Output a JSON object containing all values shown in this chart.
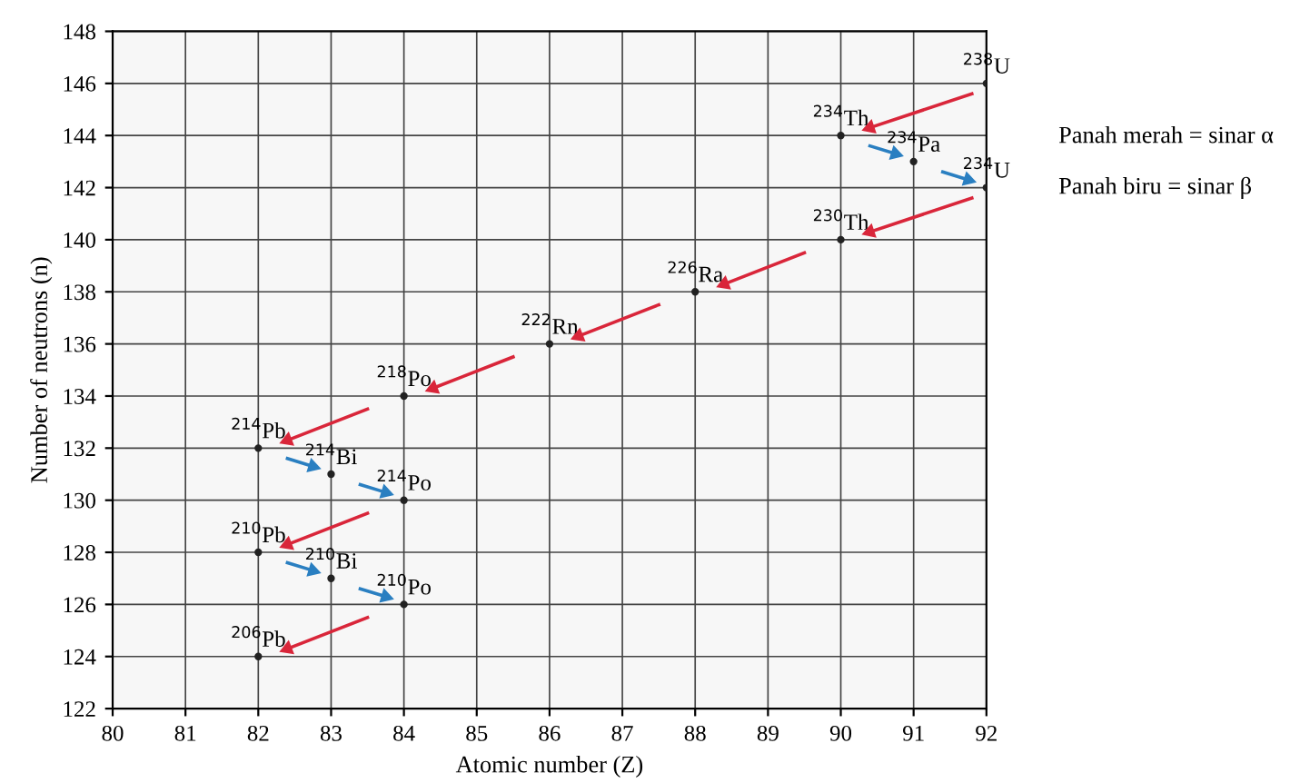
{
  "chart_data": {
    "type": "line",
    "xlabel": "Atomic number (Z)",
    "ylabel": "Number of neutrons (n)",
    "series": [
      {
        "color": "#d9263a",
        "x": [
          91.8,
          90.4
        ],
        "values": [
          145.6,
          144.3
        ]
      },
      {
        "color": "#2a7fc1",
        "x": [
          90.4,
          90.75
        ],
        "values": [
          143.6,
          143.3
        ]
      },
      {
        "color": "#2a7fc1",
        "x": [
          91.4,
          91.75
        ],
        "values": [
          142.6,
          142.3
        ]
      },
      {
        "color": "#d9263a",
        "x": [
          91.8,
          90.4
        ],
        "values": [
          141.6,
          140.3
        ]
      },
      {
        "color": "#d9263a",
        "x": [
          89.5,
          88.4
        ],
        "values": [
          139.5,
          138.3
        ]
      },
      {
        "color": "#d9263a",
        "x": [
          87.5,
          86.4
        ],
        "values": [
          137.5,
          136.3
        ]
      },
      {
        "color": "#d9263a",
        "x": [
          85.5,
          84.4
        ],
        "values": [
          135.5,
          134.3
        ]
      },
      {
        "color": "#d9263a",
        "x": [
          83.5,
          82.4
        ],
        "values": [
          133.5,
          132.3
        ]
      },
      {
        "color": "#2a7fc1",
        "x": [
          82.4,
          82.75
        ],
        "values": [
          131.6,
          131.3
        ]
      },
      {
        "color": "#2a7fc1",
        "x": [
          83.4,
          83.75
        ],
        "values": [
          130.6,
          130.3
        ]
      },
      {
        "color": "#d9263a",
        "x": [
          83.5,
          82.4
        ],
        "values": [
          129.5,
          128.3
        ]
      },
      {
        "color": "#2a7fc1",
        "x": [
          82.4,
          82.75
        ],
        "values": [
          127.6,
          127.3
        ]
      },
      {
        "color": "#2a7fc1",
        "x": [
          83.4,
          83.75
        ],
        "values": [
          126.6,
          126.3
        ]
      },
      {
        "color": "#d9263a",
        "x": [
          83.5,
          82.4
        ],
        "values": [
          125.5,
          124.3
        ]
      },
      {
        "type": "scatter",
        "color": "#222222",
        "marker": "circle",
        "x": [
          92,
          90,
          91,
          92,
          90,
          88,
          86,
          84,
          82,
          83,
          84,
          82,
          83,
          84,
          82
        ],
        "values": [
          146,
          144,
          143,
          142,
          140,
          138,
          136,
          134,
          132,
          131,
          130,
          128,
          127,
          126,
          124
        ]
      }
    ],
    "xlim": [
      80,
      92
    ],
    "xticks": [
      80,
      81,
      82,
      83,
      84,
      85,
      86,
      87,
      88,
      89,
      90,
      91,
      92
    ],
    "ylim": [
      122,
      148
    ],
    "yticks": [
      122,
      124,
      126,
      128,
      130,
      132,
      134,
      136,
      138,
      140,
      142,
      144,
      146,
      148
    ],
    "grid": true,
    "annotations": [
      {
        "text": "$^{238}$U",
        "x": 92,
        "y": 146
      },
      {
        "text": "$^{234}$Th",
        "x": 90,
        "y": 144
      },
      {
        "text": "$^{234}$Pa",
        "x": 91,
        "y": 143
      },
      {
        "text": "$^{234}$U",
        "x": 92,
        "y": 142
      },
      {
        "text": "$^{230}$Th",
        "x": 90,
        "y": 140
      },
      {
        "text": "$^{226}$Ra",
        "x": 88,
        "y": 138
      },
      {
        "text": "$^{222}$Rn",
        "x": 86,
        "y": 136
      },
      {
        "text": "$^{218}$Po",
        "x": 84,
        "y": 134
      },
      {
        "text": "$^{214}$Pb",
        "x": 82,
        "y": 132
      },
      {
        "text": "$^{214}$Bi",
        "x": 83,
        "y": 131
      },
      {
        "text": "$^{214}$Po",
        "x": 84,
        "y": 130
      },
      {
        "text": "$^{210}$Pb",
        "x": 82,
        "y": 128
      },
      {
        "text": "$^{210}$Bi",
        "x": 83,
        "y": 127
      },
      {
        "text": "$^{210}$Po",
        "x": 84,
        "y": 126
      },
      {
        "text": "$^{206}$Pb",
        "x": 82,
        "y": 124
      },
      "Panah merah = sinar α",
      "Panah biru = sinar β"
    ]
  }
}
